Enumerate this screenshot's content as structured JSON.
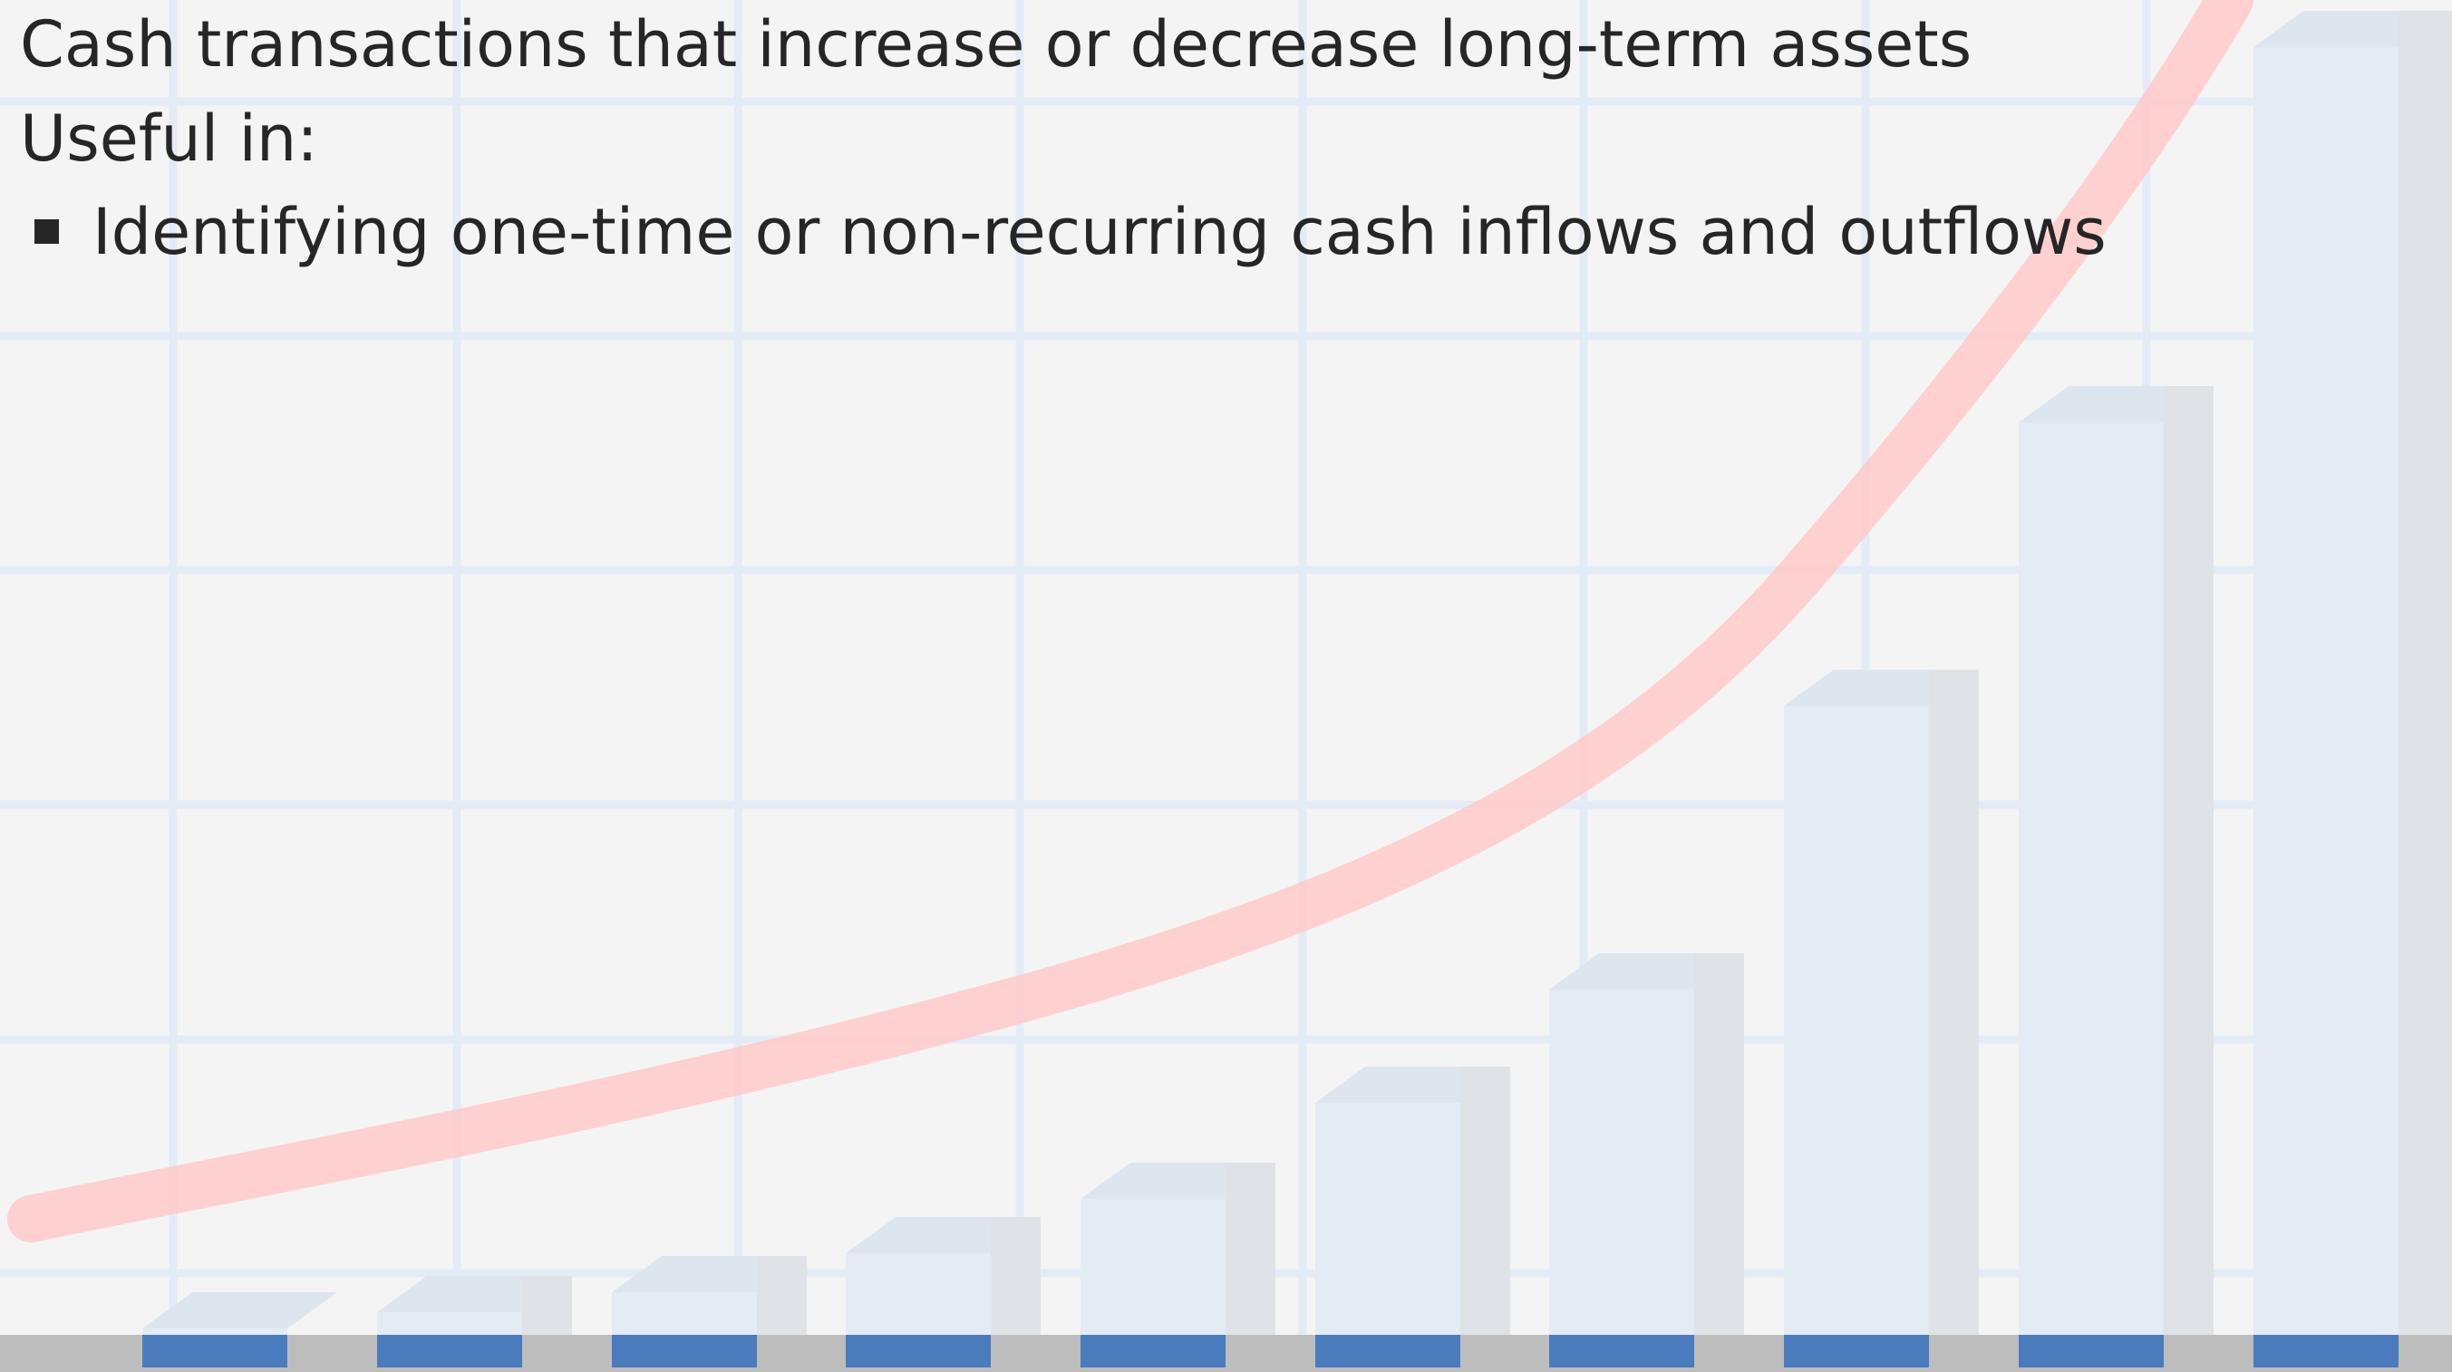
{
  "lines": [
    "Cash transactions that increase or decrease long-term assets",
    "Useful in:"
  ],
  "bullets": [
    "Identifying one-time or non-recurring cash inflows and outflows"
  ]
}
